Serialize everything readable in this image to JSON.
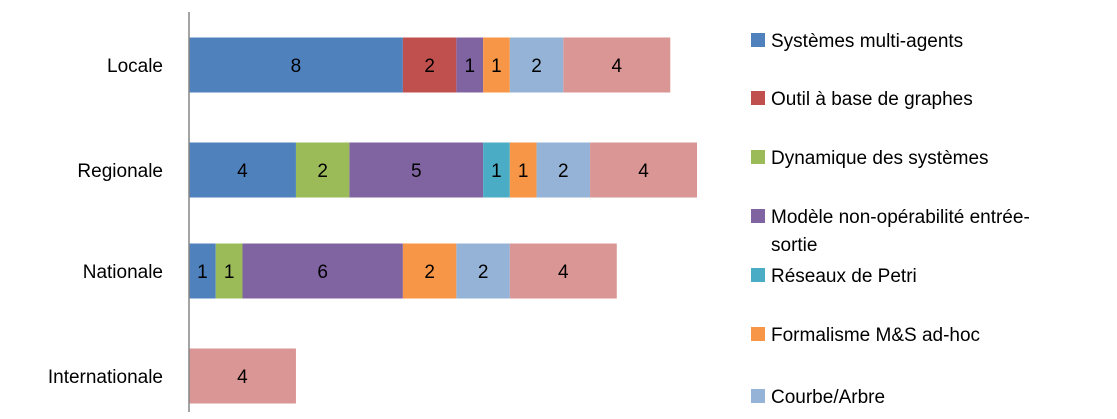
{
  "chart_data": {
    "type": "bar",
    "orientation": "horizontal",
    "stacked": true,
    "categories": [
      "Locale",
      "Regionale",
      "Nationale",
      "Internationale"
    ],
    "xlim": [
      0,
      19
    ],
    "grid": false,
    "legend_position": "right",
    "series": [
      {
        "name": "Systèmes multi-agents",
        "color": "#4F81BD",
        "values": [
          8,
          4,
          1,
          0
        ]
      },
      {
        "name": "Outil à base de graphes",
        "color": "#C0504D",
        "values": [
          2,
          0,
          0,
          0
        ]
      },
      {
        "name": "Dynamique des systèmes",
        "color": "#9BBB59",
        "values": [
          0,
          2,
          1,
          0
        ]
      },
      {
        "name": "Modèle non-opérabilité entrée-sortie",
        "color": "#8064A2",
        "values": [
          1,
          5,
          6,
          0
        ]
      },
      {
        "name": "Réseaux de Petri",
        "color": "#4BACC6",
        "values": [
          0,
          1,
          0,
          0
        ]
      },
      {
        "name": "Formalisme M&S ad-hoc",
        "color": "#F79646",
        "values": [
          1,
          1,
          2,
          0
        ]
      },
      {
        "name": "Courbe/Arbre",
        "color": "#95B3D7",
        "values": [
          2,
          2,
          2,
          0
        ]
      },
      {
        "name": "",
        "color": "#D99694",
        "values": [
          4,
          4,
          4,
          4
        ]
      }
    ]
  }
}
